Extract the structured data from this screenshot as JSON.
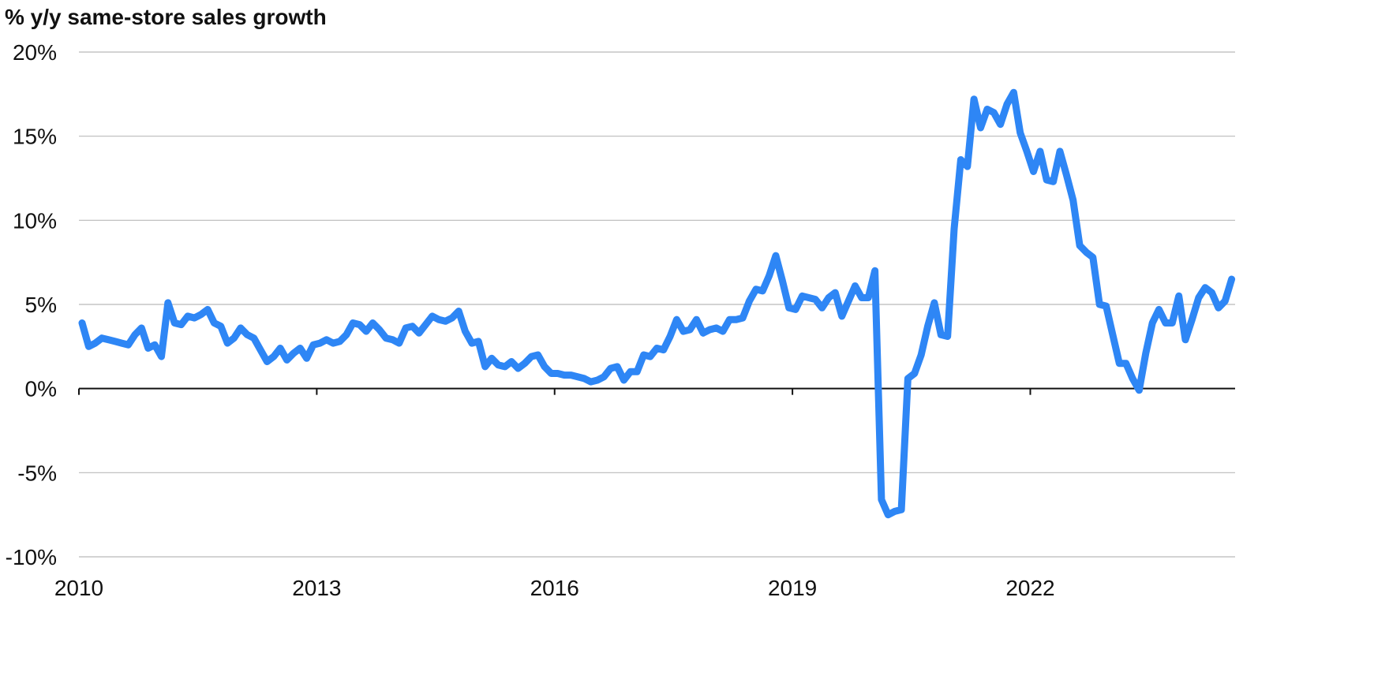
{
  "chart_data": {
    "type": "line",
    "title": "% y/y same-store sales growth",
    "xlabel": "",
    "ylabel": "",
    "x_start": "2010-01",
    "x_frequency": "monthly",
    "xlim": [
      "2010-01",
      "2024-08"
    ],
    "ylim": [
      -10,
      20
    ],
    "y_ticks": [
      20,
      15,
      10,
      5,
      0,
      -5,
      -10
    ],
    "y_tick_labels": [
      "20%",
      "15%",
      "10%",
      "5%",
      "0%",
      "-5%",
      "-10%"
    ],
    "x_ticks": [
      "2010-01",
      "2013-01",
      "2016-01",
      "2019-01",
      "2022-01"
    ],
    "x_tick_labels": [
      "2010",
      "2013",
      "2016",
      "2019",
      "2022"
    ],
    "grid": true,
    "legend": "none",
    "color": "#2e86f5",
    "series": [
      {
        "values": [
          3.9,
          2.5,
          2.7,
          3.0,
          2.9,
          2.8,
          2.7,
          2.6,
          3.2,
          3.6,
          2.4,
          2.6,
          1.9,
          5.1,
          3.9,
          3.8,
          4.3,
          4.2,
          4.4,
          4.7,
          3.9,
          3.7,
          2.7,
          3.0,
          3.6,
          3.2,
          3.0,
          2.3,
          1.6,
          1.9,
          2.4,
          1.7,
          2.1,
          2.4,
          1.8,
          2.6,
          2.7,
          2.9,
          2.7,
          2.8,
          3.2,
          3.9,
          3.8,
          3.4,
          3.9,
          3.5,
          3.0,
          2.9,
          2.7,
          3.6,
          3.7,
          3.3,
          3.8,
          4.3,
          4.1,
          4.0,
          4.2,
          4.6,
          3.4,
          2.7,
          2.8,
          1.3,
          1.8,
          1.4,
          1.3,
          1.6,
          1.2,
          1.5,
          1.9,
          2.0,
          1.3,
          0.9,
          0.9,
          0.8,
          0.8,
          0.7,
          0.6,
          0.4,
          0.5,
          0.7,
          1.2,
          1.3,
          0.5,
          1.0,
          1.0,
          2.0,
          1.9,
          2.4,
          2.3,
          3.1,
          4.1,
          3.4,
          3.5,
          4.1,
          3.3,
          3.5,
          3.6,
          3.4,
          4.1,
          4.1,
          4.2,
          5.2,
          5.9,
          5.8,
          6.7,
          7.9,
          6.4,
          4.8,
          4.7,
          5.5,
          5.4,
          5.3,
          4.8,
          5.4,
          5.7,
          4.3,
          5.2,
          6.1,
          5.4,
          5.4,
          7.0,
          -6.6,
          -7.5,
          -7.3,
          -7.2,
          0.6,
          0.9,
          2.0,
          3.7,
          5.1,
          3.2,
          3.1,
          9.5,
          13.6,
          13.2,
          17.2,
          15.5,
          16.6,
          16.4,
          15.7,
          16.9,
          17.6,
          15.2,
          14.1,
          12.9,
          14.1,
          12.4,
          12.3,
          14.1,
          12.7,
          11.2,
          8.5,
          8.1,
          7.8,
          5.0,
          4.9,
          3.2,
          1.5,
          1.5,
          0.6,
          -0.1,
          2.1,
          3.9,
          4.7,
          3.9,
          3.9,
          5.5,
          2.9,
          4.1,
          5.4,
          6.0,
          5.7,
          4.8,
          5.2,
          6.5
        ]
      }
    ]
  }
}
